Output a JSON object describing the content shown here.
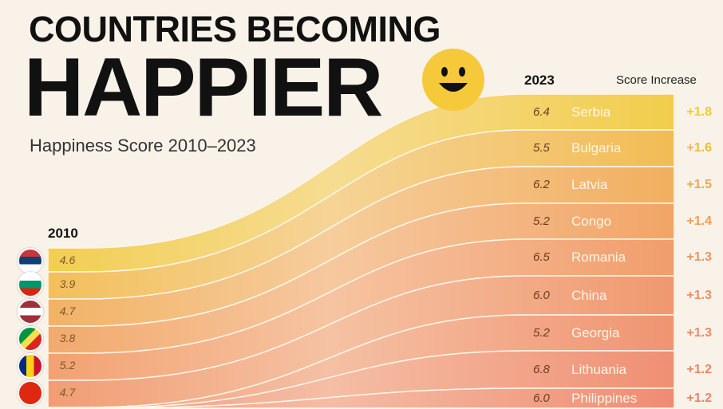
{
  "title_line1": "COUNTRIES BECOMING",
  "title_line2": "HAPPIER",
  "subtitle": "Happiness Score 2010–2023",
  "chart_data": {
    "type": "slope",
    "title": "COUNTRIES BECOMING HAPPIER",
    "subtitle": "Happiness Score 2010–2023",
    "left_label": "2010",
    "right_label": "2023",
    "increase_label": "Score Increase",
    "rows": [
      {
        "country": "Serbia",
        "score_2010": "4.6",
        "score_2023": "6.4",
        "increase": "+1.8",
        "color": "#f1c93c"
      },
      {
        "country": "Bulgaria",
        "score_2010": "3.9",
        "score_2023": "5.5",
        "increase": "+1.6",
        "color": "#f0b746"
      },
      {
        "country": "Latvia",
        "score_2010": "4.7",
        "score_2023": "6.2",
        "increase": "+1.5",
        "color": "#f0a852"
      },
      {
        "country": "Congo",
        "score_2010": "3.8",
        "score_2023": "5.2",
        "increase": "+1.4",
        "color": "#f09d5a"
      },
      {
        "country": "Romania",
        "score_2010": "5.2",
        "score_2023": "6.5",
        "increase": "+1.3",
        "color": "#f09460"
      },
      {
        "country": "China",
        "score_2010": "4.7",
        "score_2023": "6.0",
        "increase": "+1.3",
        "color": "#ef8f63"
      },
      {
        "country": "Georgia",
        "score_2010": "",
        "score_2023": "5.2",
        "increase": "+1.3",
        "color": "#ef8a66"
      },
      {
        "country": "Lithuania",
        "score_2010": "",
        "score_2023": "6.8",
        "increase": "+1.2",
        "color": "#ee8568"
      },
      {
        "country": "Philippines",
        "score_2010": "",
        "score_2023": "6.0",
        "increase": "+1.2",
        "color": "#ee8168"
      }
    ]
  }
}
